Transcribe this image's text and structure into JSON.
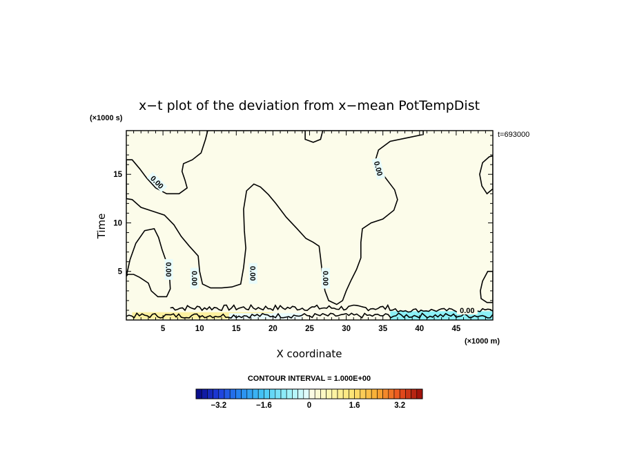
{
  "chart_data": {
    "type": "heatmap",
    "title": "x−t plot of the deviation from x−mean PotTempDist",
    "xlabel": "X coordinate",
    "ylabel": "Time",
    "x_unit": "(×1000 m)",
    "y_unit": "(×1000 s)",
    "time_stamp": "t=693000",
    "xlim": [
      0,
      50
    ],
    "ylim": [
      0,
      19.5
    ],
    "x_ticks": [
      5,
      10,
      15,
      20,
      25,
      30,
      35,
      40,
      45
    ],
    "y_ticks": [
      5,
      10,
      15
    ],
    "contour_interval_text": "CONTOUR INTERVAL = 1.000E+00",
    "contour_level_label": "0.00",
    "colorbar": {
      "min": -4,
      "max": 4,
      "step": 0.2,
      "tick_labels": [
        "−3.2",
        "−1.6",
        "0",
        "1.6",
        "3.2"
      ],
      "tick_values": [
        -3.2,
        -1.6,
        0,
        1.6,
        3.2
      ]
    },
    "colors": {
      "negative_region": "#e8fcfc",
      "positive_region": "#fcfcea",
      "strong_negative": "#8cf0f6",
      "strong_positive": "#fcf0a0"
    },
    "regions": [
      {
        "sign": "negative",
        "outline": [
          [
            0,
            16.5
          ],
          [
            0.8,
            16.5
          ],
          [
            1.8,
            15.6
          ],
          [
            2.8,
            14.6
          ],
          [
            4,
            13.6
          ],
          [
            5.5,
            13
          ],
          [
            7.2,
            13
          ],
          [
            8.3,
            13.6
          ],
          [
            8,
            14.4
          ],
          [
            7.6,
            15.3
          ],
          [
            7.8,
            16.1
          ],
          [
            9,
            16.5
          ],
          [
            10.2,
            17.2
          ],
          [
            10.8,
            18.6
          ],
          [
            11.1,
            19.5
          ],
          [
            24.4,
            19.5
          ],
          [
            24.4,
            18.6
          ],
          [
            25.5,
            18.3
          ],
          [
            26.5,
            18.6
          ],
          [
            26.8,
            19.5
          ],
          [
            40.5,
            19.5
          ],
          [
            40.5,
            19.1
          ],
          [
            38.6,
            18.8
          ],
          [
            36,
            18.4
          ],
          [
            34.4,
            17.5
          ],
          [
            34,
            16.5
          ],
          [
            34.5,
            15.5
          ],
          [
            35.5,
            14.5
          ],
          [
            36.6,
            13.4
          ],
          [
            37,
            12.4
          ],
          [
            36.5,
            11.3
          ],
          [
            35,
            10.4
          ],
          [
            33.4,
            10
          ],
          [
            32.2,
            9.4
          ],
          [
            32,
            8
          ],
          [
            32,
            6.4
          ],
          [
            31.4,
            5.2
          ],
          [
            30.6,
            4
          ],
          [
            30,
            3
          ],
          [
            29.5,
            2
          ],
          [
            28.7,
            1.6
          ],
          [
            27.6,
            2
          ],
          [
            27.1,
            3
          ],
          [
            26.8,
            4.4
          ],
          [
            26.5,
            6.4
          ],
          [
            26.3,
            7.6
          ],
          [
            25.5,
            8
          ],
          [
            24.5,
            8.4
          ],
          [
            23.3,
            9.4
          ],
          [
            21.8,
            10.6
          ],
          [
            20.4,
            12
          ],
          [
            19.4,
            12.9
          ],
          [
            18.3,
            13.7
          ],
          [
            17.4,
            14
          ],
          [
            16.4,
            13.3
          ],
          [
            16,
            11.4
          ],
          [
            16.1,
            9.2
          ],
          [
            16.3,
            7.4
          ],
          [
            16,
            5.4
          ],
          [
            15.6,
            3.7
          ],
          [
            14.4,
            3.4
          ],
          [
            13,
            3.3
          ],
          [
            11.5,
            3.3
          ],
          [
            10.4,
            3.7
          ],
          [
            10,
            5
          ],
          [
            9.8,
            6.6
          ],
          [
            8.6,
            7.6
          ],
          [
            7.5,
            8.6
          ],
          [
            6.5,
            9.8
          ],
          [
            5.2,
            10.8
          ],
          [
            3.6,
            11.2
          ],
          [
            2,
            11.6
          ],
          [
            0.8,
            12.4
          ],
          [
            0,
            12.5
          ]
        ]
      },
      {
        "sign": "negative",
        "outline": [
          [
            0,
            4.5
          ],
          [
            0.5,
            6.2
          ],
          [
            1.3,
            7.9
          ],
          [
            2.5,
            9.2
          ],
          [
            3.8,
            9.4
          ],
          [
            4.4,
            8.5
          ],
          [
            4.9,
            7.2
          ],
          [
            5.6,
            5.7
          ],
          [
            5.9,
            4.4
          ],
          [
            6,
            3.2
          ],
          [
            5.5,
            2.4
          ],
          [
            4.3,
            2.4
          ],
          [
            3.4,
            3
          ],
          [
            3,
            3.8
          ],
          [
            1.8,
            4.4
          ],
          [
            1,
            4.7
          ],
          [
            0.2,
            4.7
          ]
        ]
      },
      {
        "sign": "negative",
        "outline": [
          [
            50,
            13.5
          ],
          [
            49.2,
            13
          ],
          [
            48.5,
            13.8
          ],
          [
            48.2,
            15
          ],
          [
            48.6,
            16.2
          ],
          [
            49.5,
            16.8
          ],
          [
            50,
            16.9
          ]
        ]
      },
      {
        "sign": "negative",
        "outline": [
          [
            50,
            5
          ],
          [
            49.3,
            5
          ],
          [
            48.6,
            4
          ],
          [
            48.3,
            3
          ],
          [
            48.4,
            2.2
          ],
          [
            49.2,
            1.8
          ],
          [
            50,
            1.8
          ]
        ]
      }
    ],
    "contour_labels": [
      {
        "x": 4.2,
        "y": 14.2,
        "angle": 45
      },
      {
        "x": 5.8,
        "y": 5.2,
        "angle": 90
      },
      {
        "x": 9.3,
        "y": 4.3,
        "angle": 90
      },
      {
        "x": 17.3,
        "y": 4.8,
        "angle": 90
      },
      {
        "x": 27.2,
        "y": 4.3,
        "angle": 90
      },
      {
        "x": 34.4,
        "y": 15.6,
        "angle": 75
      },
      {
        "x": 46.5,
        "y": 1.0,
        "angle": 0
      }
    ]
  }
}
